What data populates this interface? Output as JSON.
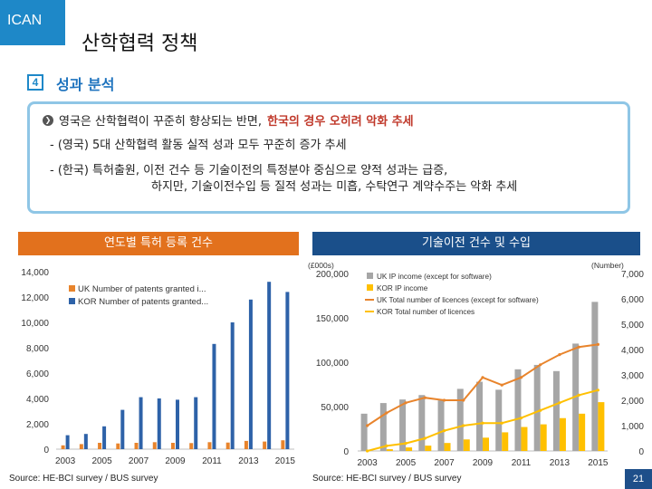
{
  "header": {
    "logo": "ICAN",
    "title": "산학협력 정책",
    "section_num": "4",
    "section_title": "성과 분석"
  },
  "summary": {
    "main_prefix": "영국은 산학협력이 꾸준히 향상되는 반면, ",
    "main_highlight": "한국의 경우 오히려 악화 추세",
    "sub1": "- (영국) 5대 산학협력 활동 실적 성과 모두 꾸준히 증가 추세",
    "sub2a": "- (한국) 특허출원, 이전 건수 등 기술이전의 특정분야 중심으로 양적 성과는 급증,",
    "sub2b": "하지만, 기술이전수입 등 질적 성과는 미흡, 수탁연구 계약수주는 악화 추세"
  },
  "left_header": "연도별 특허 등록 건수",
  "right_header": "기술이전 건수 및 수입",
  "left_source": "Source: HE-BCI survey / BUS survey",
  "right_source": "Source: HE-BCI survey / BUS survey",
  "page_number": "21",
  "chart_data": [
    {
      "type": "bar",
      "categories": [
        "2003",
        "2004",
        "2005",
        "2006",
        "2007",
        "2008",
        "2009",
        "2010",
        "2011",
        "2012",
        "2013",
        "2014",
        "2015"
      ],
      "x_tick_labels": [
        "2003",
        "2005",
        "2007",
        "2009",
        "2011",
        "2013",
        "2015"
      ],
      "series": [
        {
          "name": "UK Number of patents granted i...",
          "color": "#e8842c",
          "values": [
            300,
            400,
            500,
            450,
            500,
            550,
            500,
            480,
            550,
            520,
            650,
            600,
            700
          ]
        },
        {
          "name": "KOR Number of patents granted...",
          "color": "#2e62a8",
          "values": [
            1100,
            1200,
            1800,
            3100,
            4100,
            4000,
            3900,
            4100,
            8300,
            10000,
            11800,
            13200,
            12400
          ]
        }
      ],
      "ylim": [
        0,
        14000
      ],
      "yticks": [
        "0",
        "2,000",
        "4,000",
        "6,000",
        "8,000",
        "10,000",
        "12,000",
        "14,000"
      ],
      "legend": "top-left",
      "grid": false
    },
    {
      "type": "bar+line",
      "categories": [
        "2003",
        "2004",
        "2005",
        "2006",
        "2007",
        "2008",
        "2009",
        "2010",
        "2011",
        "2012",
        "2013",
        "2014",
        "2015"
      ],
      "x_tick_labels": [
        "2003",
        "2005",
        "2007",
        "2009",
        "2011",
        "2013",
        "2015"
      ],
      "left_axis_unit": "(£000s)",
      "right_axis_unit": "(Number)",
      "left_ylim": [
        0,
        200000
      ],
      "left_yticks": [
        "0",
        "50,000",
        "100,000",
        "150,000",
        "200,000"
      ],
      "right_ylim": [
        0,
        7000
      ],
      "right_yticks": [
        "0",
        "1,000",
        "2,000",
        "3,000",
        "4,000",
        "5,000",
        "6,000",
        "7,000"
      ],
      "series": [
        {
          "name": "UK IP income (except for software)",
          "kind": "bar",
          "axis": "left",
          "color": "#a6a6a6",
          "values": [
            42000,
            54000,
            58000,
            63000,
            57000,
            70000,
            78000,
            69000,
            92000,
            97000,
            90000,
            121000,
            168000
          ]
        },
        {
          "name": "KOR IP income",
          "kind": "bar",
          "axis": "left",
          "color": "#ffc000",
          "values": [
            0,
            2000,
            4000,
            6000,
            9000,
            13000,
            15000,
            21000,
            27000,
            30000,
            37000,
            42000,
            55000
          ]
        },
        {
          "name": "UK Total number of licences  (except for software)",
          "kind": "line",
          "axis": "right",
          "color": "#e8842c",
          "values": [
            1000,
            1500,
            1900,
            2100,
            2000,
            2000,
            2900,
            2600,
            2900,
            3400,
            3800,
            4100,
            4200
          ]
        },
        {
          "name": "KOR Total number of licences",
          "kind": "line",
          "axis": "right",
          "color": "#ffc000",
          "values": [
            0,
            200,
            300,
            500,
            800,
            1000,
            1100,
            1100,
            1300,
            1600,
            1900,
            2200,
            2400
          ]
        }
      ],
      "legend": "top-left",
      "grid": false
    }
  ]
}
